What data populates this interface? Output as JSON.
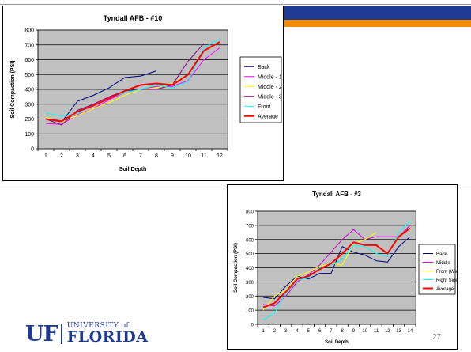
{
  "slide": {
    "number": "27"
  },
  "logo": {
    "mark": "UF",
    "university": "UNIVERSITY of",
    "name": "FLORIDA"
  },
  "colors": {
    "blue_band": "#1f3a93",
    "orange_band": "#f28c00",
    "plot_bg": "#c0c0c0"
  },
  "chart_data": [
    {
      "type": "line",
      "title": "Tyndall AFB - #10",
      "xlabel": "Soil Depth",
      "ylabel": "Soil Compaction (PSI)",
      "x": [
        1,
        2,
        3,
        4,
        5,
        6,
        7,
        8,
        9,
        10,
        11,
        12
      ],
      "xlim": [
        1,
        12
      ],
      "ylim": [
        0,
        800
      ],
      "yticks": [
        0,
        100,
        200,
        300,
        400,
        500,
        600,
        700,
        800
      ],
      "grid": true,
      "legend": "right",
      "series": [
        {
          "name": "Back",
          "color": "#000080",
          "width": 1,
          "values": [
            200,
            180,
            320,
            360,
            410,
            480,
            490,
            525,
            null,
            null,
            null,
            null
          ]
        },
        {
          "name": "Middle - 1",
          "color": "#ff00ff",
          "width": 1,
          "values": [
            170,
            165,
            230,
            270,
            330,
            380,
            400,
            420,
            420,
            460,
            600,
            680
          ]
        },
        {
          "name": "Middle - 2",
          "color": "#ffff00",
          "width": 1,
          "values": [
            210,
            180,
            225,
            270,
            310,
            360,
            400,
            410,
            440,
            500,
            660,
            720
          ]
        },
        {
          "name": "Middle - 3",
          "color": "#800080",
          "width": 1,
          "values": [
            200,
            160,
            260,
            300,
            350,
            390,
            400,
            400,
            430,
            590,
            710,
            null
          ]
        },
        {
          "name": "Front",
          "color": "#00ffff",
          "width": 1,
          "values": [
            240,
            220,
            240,
            290,
            340,
            380,
            400,
            430,
            410,
            450,
            680,
            740
          ]
        },
        {
          "name": "Average",
          "color": "#ff0000",
          "width": 2,
          "values": [
            200,
            185,
            250,
            290,
            340,
            390,
            430,
            440,
            430,
            500,
            660,
            720
          ]
        }
      ]
    },
    {
      "type": "line",
      "title": "Tyndall AFB - #3",
      "xlabel": "Soil Depth",
      "ylabel": "Soil Compaction (PSI)",
      "x": [
        1,
        2,
        3,
        4,
        5,
        6,
        7,
        8,
        9,
        10,
        11,
        12,
        13,
        14
      ],
      "xlim": [
        1,
        14
      ],
      "ylim": [
        0,
        800
      ],
      "yticks": [
        0,
        100,
        200,
        300,
        400,
        500,
        600,
        700,
        800
      ],
      "grid": true,
      "legend": "right",
      "series": [
        {
          "name": "Back",
          "color": "#000080",
          "width": 1,
          "values": [
            190,
            180,
            270,
            340,
            320,
            360,
            360,
            550,
            510,
            490,
            450,
            440,
            550,
            620
          ]
        },
        {
          "name": "Middle",
          "color": "#cc00cc",
          "width": 1,
          "values": [
            140,
            130,
            200,
            300,
            350,
            420,
            510,
            600,
            670,
            600,
            620,
            620,
            620,
            700
          ]
        },
        {
          "name": "Front (Wet)",
          "color": "#ffff00",
          "width": 1,
          "values": [
            100,
            200,
            240,
            340,
            370,
            410,
            430,
            420,
            570,
            600,
            650,
            null,
            null,
            null
          ]
        },
        {
          "name": "Right Side",
          "color": "#00ffff",
          "width": 1,
          "values": [
            30,
            80,
            220,
            310,
            330,
            400,
            420,
            460,
            560,
            550,
            500,
            480,
            650,
            730
          ]
        },
        {
          "name": "Average",
          "color": "#ff0000",
          "width": 2,
          "values": [
            120,
            150,
            230,
            320,
            340,
            390,
            430,
            500,
            580,
            560,
            560,
            500,
            620,
            680
          ]
        }
      ]
    }
  ]
}
